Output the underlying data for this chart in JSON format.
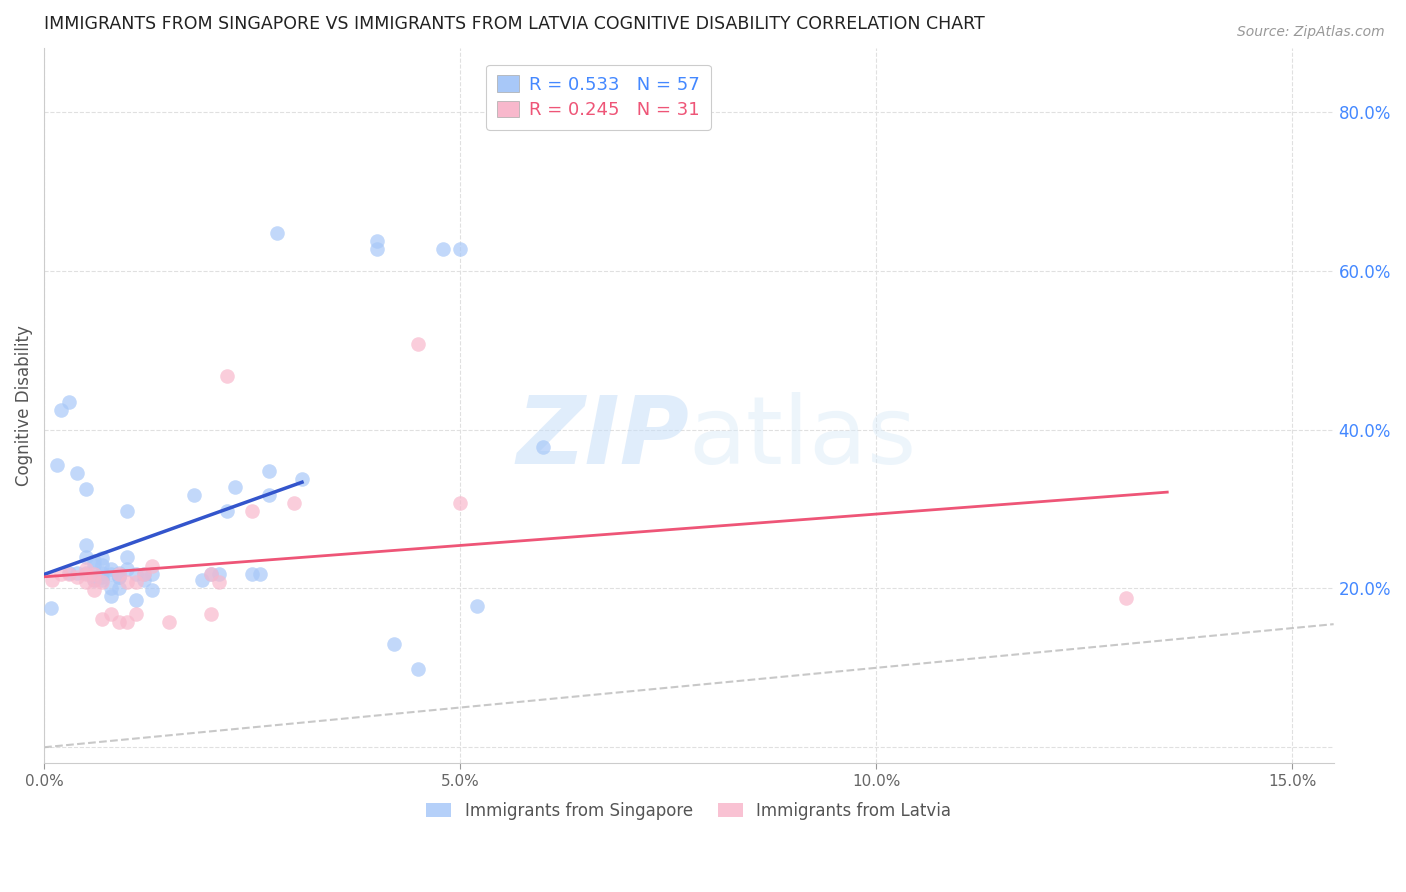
{
  "title": "IMMIGRANTS FROM SINGAPORE VS IMMIGRANTS FROM LATVIA COGNITIVE DISABILITY CORRELATION CHART",
  "source": "Source: ZipAtlas.com",
  "ylabel": "Cognitive Disability",
  "xlim": [
    0.0,
    0.155
  ],
  "ylim": [
    -0.02,
    0.88
  ],
  "xtick_vals": [
    0.0,
    0.05,
    0.1,
    0.15
  ],
  "xtick_labels": [
    "0.0%",
    "5.0%",
    "10.0%",
    "15.0%"
  ],
  "ytick_vals": [
    0.0,
    0.2,
    0.4,
    0.6,
    0.8
  ],
  "ytick_labels": [
    "",
    "20.0%",
    "40.0%",
    "60.0%",
    "80.0%"
  ],
  "legend_R1": "0.533",
  "legend_N1": "57",
  "legend_R2": "0.245",
  "legend_N2": "31",
  "watermark_zip": "ZIP",
  "watermark_atlas": "atlas",
  "singapore_color": "#a8c8f8",
  "latvia_color": "#f8b8cc",
  "singapore_alpha": 0.7,
  "latvia_alpha": 0.7,
  "dot_size": 110,
  "singapore_points": [
    [
      0.0008,
      0.175
    ],
    [
      0.0015,
      0.355
    ],
    [
      0.002,
      0.425
    ],
    [
      0.003,
      0.435
    ],
    [
      0.003,
      0.22
    ],
    [
      0.004,
      0.345
    ],
    [
      0.004,
      0.22
    ],
    [
      0.005,
      0.24
    ],
    [
      0.005,
      0.255
    ],
    [
      0.005,
      0.325
    ],
    [
      0.005,
      0.22
    ],
    [
      0.006,
      0.23
    ],
    [
      0.006,
      0.235
    ],
    [
      0.006,
      0.215
    ],
    [
      0.006,
      0.21
    ],
    [
      0.007,
      0.23
    ],
    [
      0.007,
      0.238
    ],
    [
      0.007,
      0.22
    ],
    [
      0.007,
      0.215
    ],
    [
      0.007,
      0.21
    ],
    [
      0.008,
      0.2
    ],
    [
      0.008,
      0.19
    ],
    [
      0.008,
      0.218
    ],
    [
      0.008,
      0.225
    ],
    [
      0.009,
      0.22
    ],
    [
      0.009,
      0.215
    ],
    [
      0.009,
      0.2
    ],
    [
      0.009,
      0.215
    ],
    [
      0.01,
      0.225
    ],
    [
      0.01,
      0.298
    ],
    [
      0.01,
      0.24
    ],
    [
      0.011,
      0.218
    ],
    [
      0.011,
      0.185
    ],
    [
      0.012,
      0.21
    ],
    [
      0.012,
      0.218
    ],
    [
      0.013,
      0.218
    ],
    [
      0.013,
      0.198
    ],
    [
      0.018,
      0.318
    ],
    [
      0.019,
      0.21
    ],
    [
      0.02,
      0.218
    ],
    [
      0.021,
      0.218
    ],
    [
      0.022,
      0.298
    ],
    [
      0.023,
      0.328
    ],
    [
      0.025,
      0.218
    ],
    [
      0.026,
      0.218
    ],
    [
      0.027,
      0.348
    ],
    [
      0.027,
      0.318
    ],
    [
      0.028,
      0.648
    ],
    [
      0.031,
      0.338
    ],
    [
      0.04,
      0.628
    ],
    [
      0.04,
      0.638
    ],
    [
      0.042,
      0.13
    ],
    [
      0.045,
      0.098
    ],
    [
      0.048,
      0.628
    ],
    [
      0.05,
      0.628
    ],
    [
      0.052,
      0.178
    ],
    [
      0.06,
      0.378
    ]
  ],
  "latvia_points": [
    [
      0.001,
      0.21
    ],
    [
      0.002,
      0.218
    ],
    [
      0.003,
      0.218
    ],
    [
      0.004,
      0.215
    ],
    [
      0.005,
      0.218
    ],
    [
      0.005,
      0.225
    ],
    [
      0.005,
      0.208
    ],
    [
      0.006,
      0.21
    ],
    [
      0.006,
      0.198
    ],
    [
      0.006,
      0.218
    ],
    [
      0.007,
      0.208
    ],
    [
      0.007,
      0.162
    ],
    [
      0.008,
      0.168
    ],
    [
      0.009,
      0.158
    ],
    [
      0.009,
      0.218
    ],
    [
      0.01,
      0.208
    ],
    [
      0.01,
      0.158
    ],
    [
      0.011,
      0.168
    ],
    [
      0.011,
      0.208
    ],
    [
      0.012,
      0.218
    ],
    [
      0.013,
      0.228
    ],
    [
      0.015,
      0.158
    ],
    [
      0.02,
      0.168
    ],
    [
      0.02,
      0.218
    ],
    [
      0.021,
      0.208
    ],
    [
      0.022,
      0.468
    ],
    [
      0.025,
      0.298
    ],
    [
      0.03,
      0.308
    ],
    [
      0.05,
      0.308
    ],
    [
      0.13,
      0.188
    ],
    [
      0.045,
      0.508
    ]
  ],
  "diag_line_color": "#bbbbbb",
  "blue_line_color": "#3355cc",
  "pink_line_color": "#ee5577",
  "grid_color": "#e0e0e0",
  "title_color": "#222222",
  "axis_label_color": "#555555",
  "right_axis_color": "#4488ff",
  "legend_border_color": "#cccccc",
  "background_color": "#ffffff"
}
